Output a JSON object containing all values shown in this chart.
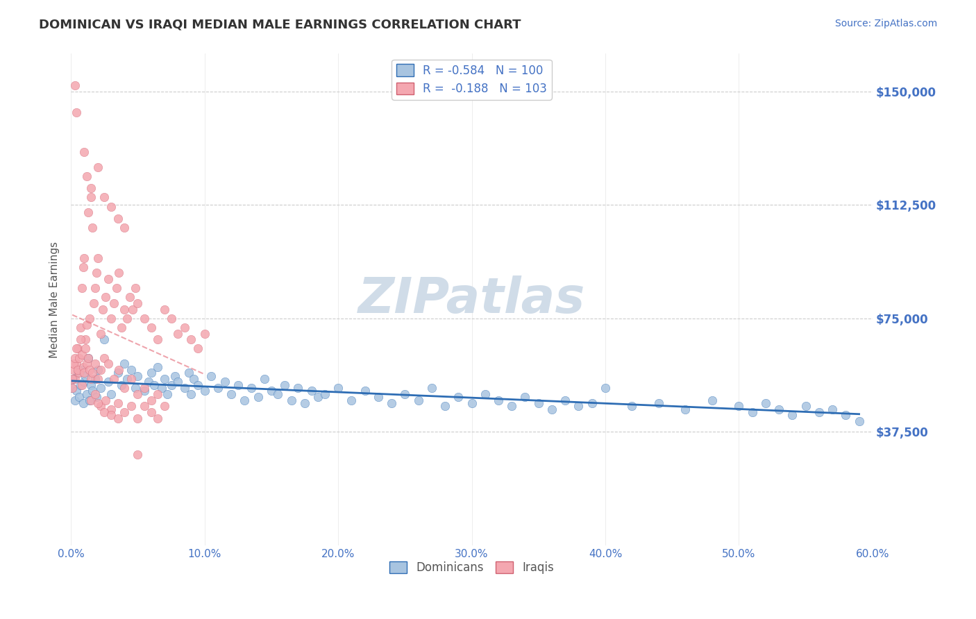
{
  "title": "DOMINICAN VS IRAQI MEDIAN MALE EARNINGS CORRELATION CHART",
  "source": "Source: ZipAtlas.com",
  "ylabel": "Median Male Earnings",
  "xlim": [
    0.0,
    0.6
  ],
  "ylim": [
    0,
    162500
  ],
  "yticks": [
    0,
    37500,
    75000,
    112500,
    150000
  ],
  "ytick_labels": [
    "",
    "$37,500",
    "$75,000",
    "$112,500",
    "$150,000"
  ],
  "xticks": [
    0.0,
    0.1,
    0.2,
    0.3,
    0.4,
    0.5,
    0.6
  ],
  "xtick_labels": [
    "0.0%",
    "10.0%",
    "20.0%",
    "30.0%",
    "40.0%",
    "50.0%",
    "60.0%"
  ],
  "legend_r_blue": "-0.584",
  "legend_n_blue": "100",
  "legend_r_pink": "-0.188",
  "legend_n_pink": "103",
  "legend_label_blue": "Dominicans",
  "legend_label_pink": "Iraqis",
  "blue_color": "#a8c4e0",
  "pink_color": "#f4a7b0",
  "trend_blue_color": "#2e6db4",
  "trend_pink_color": "#e87f8a",
  "watermark": "ZIPatlas",
  "watermark_color": "#d0dce8",
  "title_color": "#333333",
  "axis_label_color": "#555555",
  "tick_color": "#4472c4",
  "grid_color": "#cccccc",
  "blue_scatter_x": [
    0.001,
    0.002,
    0.003,
    0.004,
    0.005,
    0.006,
    0.007,
    0.008,
    0.009,
    0.01,
    0.011,
    0.012,
    0.013,
    0.014,
    0.015,
    0.016,
    0.018,
    0.019,
    0.02,
    0.022,
    0.025,
    0.028,
    0.03,
    0.035,
    0.038,
    0.04,
    0.042,
    0.045,
    0.048,
    0.05,
    0.055,
    0.058,
    0.06,
    0.062,
    0.065,
    0.068,
    0.07,
    0.072,
    0.075,
    0.078,
    0.08,
    0.085,
    0.088,
    0.09,
    0.092,
    0.095,
    0.1,
    0.105,
    0.11,
    0.115,
    0.12,
    0.125,
    0.13,
    0.135,
    0.14,
    0.145,
    0.15,
    0.155,
    0.16,
    0.165,
    0.17,
    0.175,
    0.18,
    0.185,
    0.19,
    0.2,
    0.21,
    0.22,
    0.23,
    0.24,
    0.25,
    0.26,
    0.27,
    0.28,
    0.29,
    0.3,
    0.31,
    0.32,
    0.33,
    0.34,
    0.35,
    0.36,
    0.37,
    0.38,
    0.39,
    0.4,
    0.42,
    0.44,
    0.46,
    0.48,
    0.5,
    0.51,
    0.52,
    0.53,
    0.54,
    0.55,
    0.56,
    0.57,
    0.58,
    0.59
  ],
  "blue_scatter_y": [
    52000,
    55000,
    48000,
    51000,
    57000,
    49000,
    53000,
    58000,
    47000,
    54000,
    56000,
    50000,
    62000,
    48000,
    53000,
    51000,
    55000,
    49000,
    58000,
    52000,
    68000,
    54000,
    50000,
    57000,
    53000,
    60000,
    55000,
    58000,
    52000,
    56000,
    51000,
    54000,
    57000,
    53000,
    59000,
    52000,
    55000,
    50000,
    53000,
    56000,
    54000,
    52000,
    57000,
    50000,
    55000,
    53000,
    51000,
    56000,
    52000,
    54000,
    50000,
    53000,
    48000,
    52000,
    49000,
    55000,
    51000,
    50000,
    53000,
    48000,
    52000,
    47000,
    51000,
    49000,
    50000,
    52000,
    48000,
    51000,
    49000,
    47000,
    50000,
    48000,
    52000,
    46000,
    49000,
    47000,
    50000,
    48000,
    46000,
    49000,
    47000,
    45000,
    48000,
    46000,
    47000,
    52000,
    46000,
    47000,
    45000,
    48000,
    46000,
    44000,
    47000,
    45000,
    43000,
    46000,
    44000,
    45000,
    43000,
    41000
  ],
  "pink_scatter_x": [
    0.001,
    0.002,
    0.003,
    0.004,
    0.005,
    0.006,
    0.007,
    0.008,
    0.009,
    0.01,
    0.011,
    0.012,
    0.013,
    0.014,
    0.015,
    0.016,
    0.017,
    0.018,
    0.019,
    0.02,
    0.022,
    0.024,
    0.026,
    0.028,
    0.03,
    0.032,
    0.034,
    0.036,
    0.038,
    0.04,
    0.042,
    0.044,
    0.046,
    0.048,
    0.05,
    0.055,
    0.06,
    0.065,
    0.07,
    0.075,
    0.08,
    0.085,
    0.09,
    0.095,
    0.1,
    0.001,
    0.002,
    0.003,
    0.004,
    0.005,
    0.006,
    0.007,
    0.008,
    0.009,
    0.01,
    0.011,
    0.012,
    0.013,
    0.014,
    0.015,
    0.016,
    0.018,
    0.02,
    0.022,
    0.025,
    0.028,
    0.032,
    0.036,
    0.04,
    0.045,
    0.05,
    0.055,
    0.06,
    0.065,
    0.07,
    0.015,
    0.018,
    0.022,
    0.026,
    0.03,
    0.035,
    0.04,
    0.045,
    0.05,
    0.01,
    0.012,
    0.015,
    0.02,
    0.025,
    0.03,
    0.035,
    0.04,
    0.008,
    0.02,
    0.025,
    0.03,
    0.035,
    0.003,
    0.004,
    0.055,
    0.06,
    0.065,
    0.05
  ],
  "pink_scatter_y": [
    52000,
    58000,
    55000,
    60000,
    65000,
    57000,
    72000,
    85000,
    92000,
    95000,
    68000,
    73000,
    110000,
    75000,
    115000,
    105000,
    80000,
    85000,
    90000,
    95000,
    70000,
    78000,
    82000,
    88000,
    75000,
    80000,
    85000,
    90000,
    72000,
    78000,
    75000,
    82000,
    78000,
    85000,
    80000,
    75000,
    72000,
    68000,
    78000,
    75000,
    70000,
    72000,
    68000,
    65000,
    70000,
    55000,
    60000,
    62000,
    65000,
    58000,
    62000,
    68000,
    63000,
    59000,
    57000,
    65000,
    60000,
    62000,
    58000,
    55000,
    57000,
    60000,
    55000,
    58000,
    62000,
    60000,
    55000,
    58000,
    52000,
    55000,
    50000,
    52000,
    48000,
    50000,
    46000,
    48000,
    50000,
    46000,
    48000,
    45000,
    47000,
    44000,
    46000,
    42000,
    130000,
    122000,
    118000,
    125000,
    115000,
    112000,
    108000,
    105000,
    53000,
    47000,
    44000,
    43000,
    42000,
    152000,
    143000,
    46000,
    44000,
    42000,
    30000
  ]
}
